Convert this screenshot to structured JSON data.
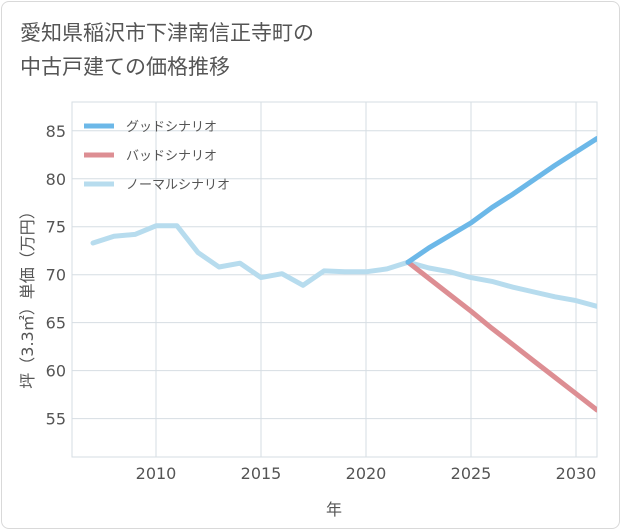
{
  "title_lines": [
    "愛知県稲沢市下津南信正寺町の",
    "中古戸建ての価格推移"
  ],
  "chart_data": {
    "type": "line",
    "xlabel": "年",
    "ylabel": "坪（3.3㎡）単価（万円）",
    "xlim": [
      2006,
      2031
    ],
    "ylim": [
      51,
      88
    ],
    "xticks": [
      2010,
      2015,
      2020,
      2025,
      2030
    ],
    "yticks": [
      55,
      60,
      65,
      70,
      75,
      80,
      85
    ],
    "grid": true,
    "legend_position": "top-left",
    "series": [
      {
        "name": "グッドシナリオ",
        "color": "#6cb8e8",
        "x": [
          2022,
          2023,
          2024,
          2025,
          2026,
          2027,
          2028,
          2029,
          2030,
          2031
        ],
        "y": [
          71.3,
          72.8,
          74.1,
          75.4,
          77.0,
          78.4,
          79.9,
          81.4,
          82.8,
          84.2
        ]
      },
      {
        "name": "バッドシナリオ",
        "color": "#dd8e93",
        "x": [
          2022,
          2023,
          2024,
          2025,
          2026,
          2027,
          2028,
          2029,
          2030,
          2031
        ],
        "y": [
          71.3,
          69.6,
          67.9,
          66.2,
          64.4,
          62.7,
          61.0,
          59.3,
          57.6,
          55.9
        ]
      },
      {
        "name": "ノーマルシナリオ",
        "color": "#b7dcee",
        "x": [
          2007,
          2008,
          2009,
          2010,
          2011,
          2012,
          2013,
          2014,
          2015,
          2016,
          2017,
          2018,
          2019,
          2020,
          2021,
          2022,
          2023,
          2024,
          2025,
          2026,
          2027,
          2028,
          2029,
          2030,
          2031
        ],
        "y": [
          73.3,
          74.0,
          74.2,
          75.1,
          75.1,
          72.3,
          70.8,
          71.2,
          69.7,
          70.1,
          68.9,
          70.4,
          70.3,
          70.3,
          70.6,
          71.3,
          70.7,
          70.3,
          69.7,
          69.3,
          68.7,
          68.2,
          67.7,
          67.3,
          66.7
        ]
      }
    ]
  }
}
